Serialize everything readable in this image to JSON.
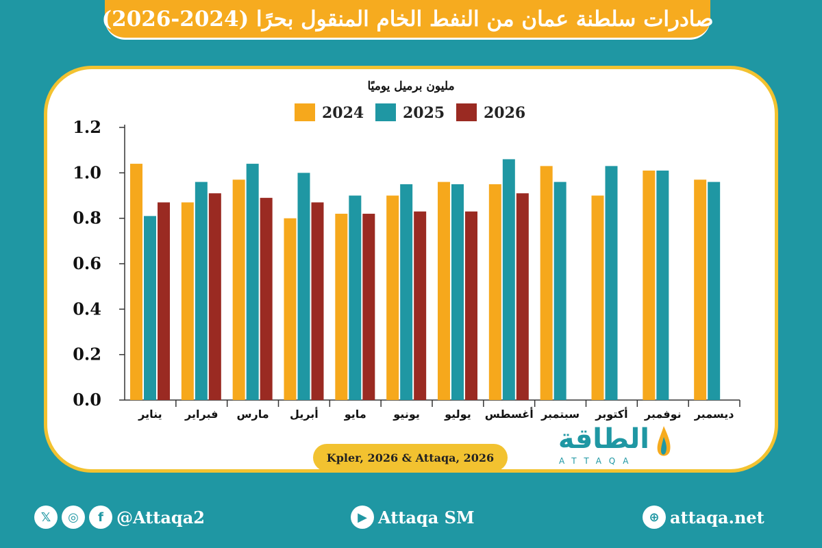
{
  "title": "صادرات سلطنة عمان من النفط الخام المنقول بحرًا (2024-2026)",
  "chart_data": {
    "type": "bar",
    "ylabel": "مليون برميل يوميًا",
    "ylim": [
      0,
      1.2
    ],
    "yticks": [
      "0.0",
      "0.2",
      "0.4",
      "0.6",
      "0.8",
      "1.0",
      "1.2"
    ],
    "categories": [
      "يناير",
      "فبراير",
      "مارس",
      "أبريل",
      "مايو",
      "يونيو",
      "يوليو",
      "أغسطس",
      "سبتمبر",
      "أكتوبر",
      "نوفمبر",
      "ديسمبر"
    ],
    "series": [
      {
        "name": "2024",
        "color": "#f6a81c",
        "values": [
          1.04,
          0.87,
          0.97,
          0.8,
          0.82,
          0.9,
          0.96,
          0.95,
          1.03,
          0.9,
          1.01,
          0.97
        ]
      },
      {
        "name": "2025",
        "color": "#1f97a3",
        "values": [
          0.81,
          0.96,
          1.04,
          1.0,
          0.9,
          0.95,
          0.95,
          1.06,
          0.96,
          1.03,
          1.01,
          0.96
        ]
      },
      {
        "name": "2026",
        "color": "#9a2a22",
        "values": [
          0.87,
          0.91,
          0.89,
          0.87,
          0.82,
          0.83,
          0.83,
          0.91,
          null,
          null,
          null,
          null
        ]
      }
    ],
    "legend_position": "top-center",
    "grid": false
  },
  "source": "Kpler, 2026 & Attaqa, 2026",
  "logo": {
    "text": "الطاقة",
    "sub": "ATTAQA"
  },
  "footer": {
    "social_handle": "@Attaqa2",
    "youtube": "Attaqa SM",
    "website": "attaqa.net"
  },
  "colors": {
    "background": "#1f97a3",
    "accent": "#f6ab1f",
    "panel_border": "#f2c230"
  }
}
